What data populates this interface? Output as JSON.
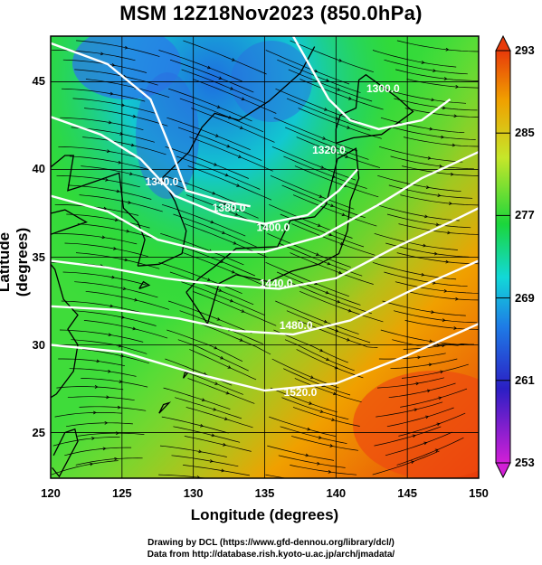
{
  "title": "MSM 12Z18Nov2023 (850.0hPa)",
  "axes": {
    "xlabel": "Longitude (degrees)",
    "ylabel": "Latitude  (degrees)",
    "xlim": [
      120,
      150
    ],
    "ylim": [
      22.4,
      47.6
    ],
    "xticks": [
      "120",
      "125",
      "130",
      "135",
      "140",
      "145",
      "150"
    ],
    "yticks": [
      "25",
      "30",
      "35",
      "40",
      "45"
    ]
  },
  "colorbar": {
    "range": [
      253,
      293
    ],
    "ticks": [
      "253",
      "261",
      "269",
      "277",
      "285",
      "293"
    ],
    "colors": [
      "#d21fd6",
      "#2b1fc4",
      "#1e7be6",
      "#12d8d8",
      "#1bd63b",
      "#c6e62a",
      "#f0a000",
      "#e83a0a"
    ]
  },
  "contours": [
    {
      "label": "1440.0",
      "lon": 135.8,
      "lat": 33.3
    },
    {
      "label": "1480.0",
      "lon": 137.2,
      "lat": 30.9
    },
    {
      "label": "1520.0",
      "lon": 137.5,
      "lat": 27.1
    },
    {
      "label": "1400.0",
      "lon": 135.6,
      "lat": 36.5
    },
    {
      "label": "1320.0",
      "lon": 139.5,
      "lat": 40.9
    },
    {
      "label": "1380.0",
      "lon": 132.5,
      "lat": 37.6
    },
    {
      "label": "1340.0",
      "lon": 127.8,
      "lat": 39.1
    },
    {
      "label": "1300.0",
      "lon": 143.3,
      "lat": 44.4
    }
  ],
  "credits": [
    "Drawing by DCL (https://www.gfd-dennou.org/library/dcl/)",
    "Data from http://database.rish.kyoto-u.ac.jp/arch/jmadata/"
  ]
}
